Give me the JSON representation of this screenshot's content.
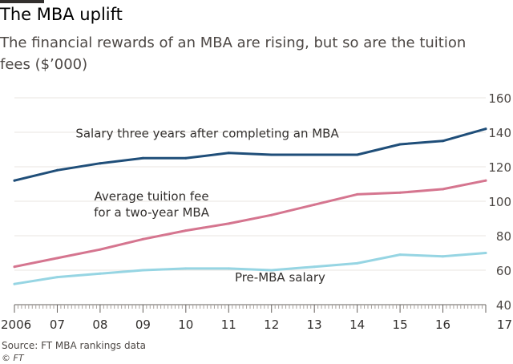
{
  "header": {
    "title": "The MBA uplift",
    "subtitle": "The financial rewards of an MBA are rising, but so are the tuition fees ($’000)"
  },
  "footer": {
    "source": "Source: FT MBA rankings data",
    "credit": "© FT"
  },
  "colors": {
    "salary": "#1f4e79",
    "tuition": "#d5758f",
    "pre_mba": "#96d5e3",
    "grid": "#e8e4e0",
    "axis": "#66605c"
  },
  "chart_data": {
    "type": "line",
    "title": "The MBA uplift",
    "subtitle": "The financial rewards of an MBA are rising, but so are the tuition fees ($’000)",
    "xlabel": "",
    "ylabel": "",
    "x": [
      2006,
      2007,
      2008,
      2009,
      2010,
      2011,
      2012,
      2013,
      2014,
      2015,
      2016,
      2017
    ],
    "x_tick_labels": [
      "2006",
      "07",
      "08",
      "09",
      "10",
      "11",
      "12",
      "13",
      "14",
      "15",
      "16",
      "17"
    ],
    "xlim": [
      2006,
      2017
    ],
    "ylim": [
      40,
      160
    ],
    "y_ticks": [
      40,
      60,
      80,
      100,
      120,
      140,
      160
    ],
    "y_tick_labels": [
      "40",
      "60",
      "80",
      "100",
      "120",
      "140",
      "160"
    ],
    "y_axis_side": "right",
    "grid": true,
    "legend": "none (series labelled directly on the plot)",
    "series": [
      {
        "key": "salary",
        "name": "Salary three years after completing an MBA",
        "label_lines": [
          "Salary three years after completing an MBA"
        ],
        "label_anchor": [
          2010.5,
          137
        ],
        "values": [
          112,
          118,
          122,
          125,
          125,
          128,
          127,
          127,
          127,
          133,
          135,
          142
        ]
      },
      {
        "key": "tuition",
        "name": "Average tuition fee for a two-year MBA",
        "label_lines": [
          "Average tuition fee",
          "for a two-year MBA"
        ],
        "label_anchor": [
          2009.2,
          100.5
        ],
        "values": [
          62,
          67,
          72,
          78,
          83,
          87,
          92,
          98,
          104,
          105,
          107,
          112
        ]
      },
      {
        "key": "pre_mba",
        "name": "Pre-MBA salary",
        "label_lines": [
          "Pre-MBA salary"
        ],
        "label_anchor": [
          2012.2,
          53.5
        ],
        "values": [
          52,
          56,
          58,
          60,
          61,
          61,
          60,
          62,
          64,
          69,
          68,
          70
        ]
      }
    ]
  }
}
